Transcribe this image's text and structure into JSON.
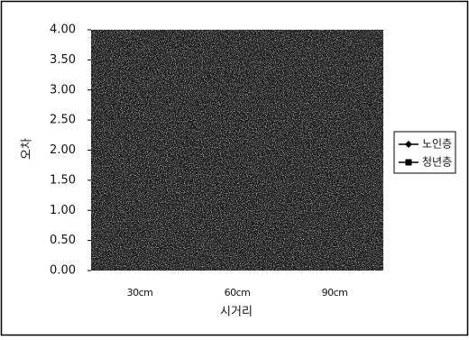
{
  "chart_data": {
    "type": "line",
    "x_label": "시거리",
    "y_label": "오차",
    "categories": [
      "30cm",
      "60cm",
      "90cm"
    ],
    "series": [
      {
        "name": "노인층",
        "color": "#000000",
        "marker": "diamond",
        "values": [
          null,
          null,
          null
        ]
      },
      {
        "name": "청년층",
        "color": "#000000",
        "marker": "square",
        "values": [
          null,
          null,
          null
        ]
      }
    ],
    "ylim": [
      0,
      4
    ],
    "yticks": [
      {
        "value": 0,
        "label": "0.00"
      },
      {
        "value": 0.5,
        "label": "0.50"
      },
      {
        "value": 1,
        "label": "1.00"
      },
      {
        "value": 1.5,
        "label": "1.50"
      },
      {
        "value": 2,
        "label": "2.00"
      },
      {
        "value": 2.5,
        "label": "2.50"
      },
      {
        "value": 3,
        "label": "3.00"
      },
      {
        "value": 3.5,
        "label": "3.50"
      },
      {
        "value": 4,
        "label": "4.00"
      }
    ],
    "legend": "right"
  }
}
